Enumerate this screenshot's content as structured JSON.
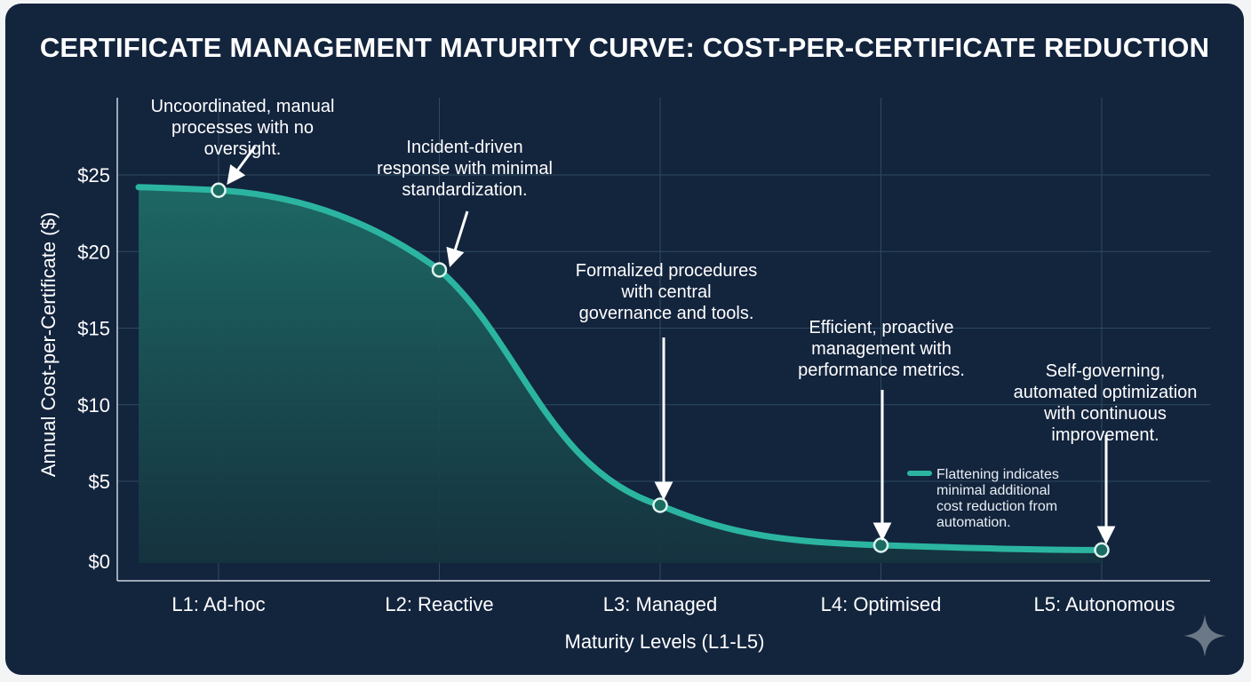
{
  "chart_data": {
    "type": "line",
    "title": "CERTIFICATE MANAGEMENT MATURITY CURVE: COST-PER-CERTIFICATE REDUCTION",
    "xlabel": "Maturity Levels (L1-L5)",
    "ylabel": "Annual Cost-per-Certificate ($)",
    "categories": [
      "L1: Ad-hoc",
      "L2: Reactive",
      "L3: Managed",
      "L4: Optimised",
      "L5: Autonomous"
    ],
    "values": [
      24,
      18.8,
      3.5,
      1.0,
      0.7
    ],
    "y_ticks": [
      {
        "value": 0,
        "label": "$0"
      },
      {
        "value": 5,
        "label": "$5"
      },
      {
        "value": 10,
        "label": "$10"
      },
      {
        "value": 15,
        "label": "$15"
      },
      {
        "value": 20,
        "label": "$20"
      },
      {
        "value": 25,
        "label": "$25"
      }
    ],
    "ylim": [
      0,
      25
    ],
    "grid": true,
    "area_fill": true,
    "annotations": [
      {
        "level": "L1: Ad-hoc",
        "lines": [
          "Uncoordinated, manual",
          "processes with no",
          "oversight."
        ]
      },
      {
        "level": "L2: Reactive",
        "lines": [
          "Incident-driven",
          "response with minimal",
          "standardization."
        ]
      },
      {
        "level": "L3: Managed",
        "lines": [
          "Formalized procedures",
          "with central",
          "governance and tools."
        ]
      },
      {
        "level": "L4: Optimised",
        "lines": [
          "Efficient, proactive",
          "management with",
          "performance metrics."
        ]
      },
      {
        "level": "L5: Autonomous",
        "lines": [
          "Self-governing,",
          "automated optimization",
          "with continuous",
          "improvement."
        ]
      }
    ],
    "legend": {
      "position": "bottom-right",
      "lines": [
        "Flattening indicates",
        "minimal additional",
        "cost reduction from",
        "automation."
      ]
    },
    "colors": {
      "background": "#13243d",
      "grid": "#2c4b5e",
      "line": "#2bb5a0",
      "fill_top": "#1e6b66",
      "fill_bottom": "#15333f",
      "text": "#ffffff"
    }
  }
}
